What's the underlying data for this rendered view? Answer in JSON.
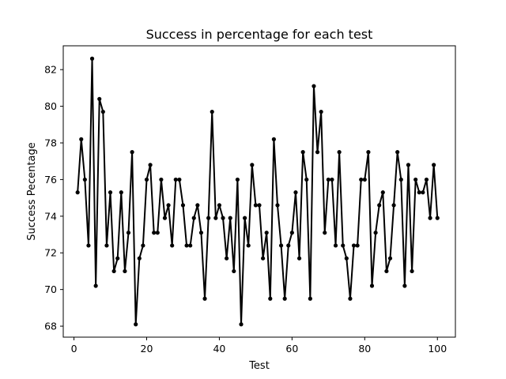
{
  "chart_data": {
    "type": "line",
    "title": "Success in percentage for each test",
    "xlabel": "Test",
    "ylabel": "Success Pecentage",
    "xlim": [
      -2.95,
      104.95
    ],
    "ylim": [
      67.4,
      83.3
    ],
    "xticks": [
      0,
      20,
      40,
      60,
      80,
      100
    ],
    "yticks": [
      68,
      70,
      72,
      74,
      76,
      78,
      80,
      82
    ],
    "grid": false,
    "legend": "none",
    "line_color": "#000000",
    "marker": "circle",
    "series": [
      {
        "x": [
          1,
          2,
          3,
          4,
          5,
          6,
          7,
          8,
          9,
          10,
          11,
          12,
          13,
          14,
          15,
          16,
          17,
          18,
          19,
          20,
          21,
          22,
          23,
          24,
          25,
          26,
          27,
          28,
          29,
          30,
          31,
          32,
          33,
          34,
          35,
          36,
          37,
          38,
          39,
          40,
          41,
          42,
          43,
          44,
          45,
          46,
          47,
          48,
          49,
          50,
          51,
          52,
          53,
          54,
          55,
          56,
          57,
          58,
          59,
          60,
          61,
          62,
          63,
          64,
          65,
          66,
          67,
          68,
          69,
          70,
          71,
          72,
          73,
          74,
          75,
          76,
          77,
          78,
          79,
          80,
          81,
          82,
          83,
          84,
          85,
          86,
          87,
          88,
          89,
          90,
          91,
          92,
          93,
          94,
          95,
          96,
          97,
          98,
          99,
          100
        ],
        "values": [
          75.3,
          78.2,
          76.0,
          72.4,
          82.6,
          70.2,
          80.4,
          79.7,
          72.4,
          75.3,
          71.0,
          71.7,
          75.3,
          71.0,
          73.1,
          77.5,
          68.1,
          71.7,
          72.4,
          76.0,
          76.8,
          73.1,
          73.1,
          76.0,
          73.9,
          74.6,
          72.4,
          76.0,
          76.0,
          74.6,
          72.4,
          72.4,
          73.9,
          74.6,
          73.1,
          69.5,
          73.9,
          79.7,
          73.9,
          74.6,
          73.9,
          71.7,
          73.9,
          71.0,
          76.0,
          68.1,
          73.9,
          72.4,
          76.8,
          74.6,
          74.6,
          71.7,
          73.1,
          69.5,
          78.2,
          74.6,
          72.4,
          69.5,
          72.4,
          73.1,
          75.3,
          71.7,
          77.5,
          76.0,
          69.5,
          81.1,
          77.5,
          79.7,
          73.1,
          76.0,
          76.0,
          72.4,
          77.5,
          72.4,
          71.7,
          69.5,
          72.4,
          72.4,
          76.0,
          76.0,
          77.5,
          70.2,
          73.1,
          74.6,
          75.3,
          71.0,
          71.7,
          74.6,
          77.5,
          76.0,
          70.2,
          76.8,
          71.0,
          76.0,
          75.3,
          75.3,
          76.0,
          73.9,
          76.8,
          73.9
        ]
      }
    ]
  }
}
